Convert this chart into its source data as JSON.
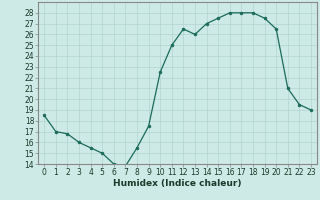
{
  "x": [
    0,
    1,
    2,
    3,
    4,
    5,
    6,
    7,
    8,
    9,
    10,
    11,
    12,
    13,
    14,
    15,
    16,
    17,
    18,
    19,
    20,
    21,
    22,
    23
  ],
  "y": [
    18.5,
    17.0,
    16.8,
    16.0,
    15.5,
    15.0,
    14.0,
    13.8,
    15.5,
    17.5,
    22.5,
    25.0,
    26.5,
    26.0,
    27.0,
    27.5,
    28.0,
    28.0,
    28.0,
    27.5,
    26.5,
    21.0,
    19.5,
    19.0
  ],
  "xlabel": "Humidex (Indice chaleur)",
  "xlim": [
    -0.5,
    23.5
  ],
  "ylim": [
    14,
    29
  ],
  "yticks": [
    14,
    15,
    16,
    17,
    18,
    19,
    20,
    21,
    22,
    23,
    24,
    25,
    26,
    27,
    28
  ],
  "xticks": [
    0,
    1,
    2,
    3,
    4,
    5,
    6,
    7,
    8,
    9,
    10,
    11,
    12,
    13,
    14,
    15,
    16,
    17,
    18,
    19,
    20,
    21,
    22,
    23
  ],
  "line_color": "#1a6b5a",
  "marker_color": "#1a6b5a",
  "bg_color": "#ceeae6",
  "grid_color": "#b0d4cf",
  "border_color": "#888888",
  "tick_color": "#1a3a2a",
  "xlabel_color": "#1a3a2a",
  "xlabel_fontsize": 6.5,
  "tick_fontsize": 5.5
}
